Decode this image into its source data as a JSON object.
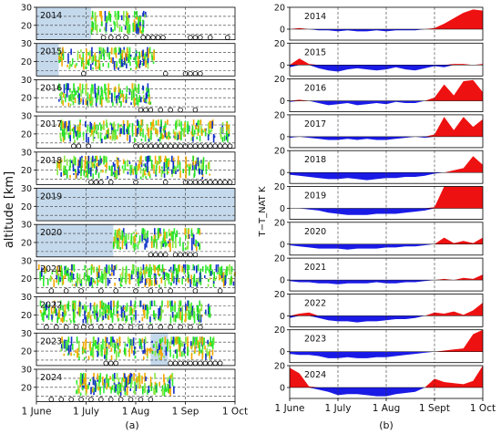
{
  "chart_data": [
    {
      "type": "scatter",
      "panel_label": "(a)",
      "ylabel": "altitude [km]",
      "xticks": [
        "1 June",
        "1 July",
        "1 Aug",
        "1 Sep",
        "1 Oct"
      ],
      "yticks": [
        20,
        30
      ],
      "ylim": [
        12,
        30
      ],
      "grid": "dashed",
      "years": [
        {
          "year": "2014",
          "shade": [
            0,
            1.1
          ],
          "data": [
            1.1,
            2.2
          ],
          "circles": [
            1.35,
            1.5,
            1.65,
            1.8,
            2.15,
            2.25,
            2.35,
            2.45,
            2.55,
            3.1,
            3.2,
            3.3,
            3.5,
            3.85
          ]
        },
        {
          "year": "2015",
          "shade": [
            0,
            0.45
          ],
          "data": [
            0.45,
            2.4
          ],
          "circles": [
            0.95,
            2.6,
            3.0,
            3.1,
            3.2,
            3.3
          ]
        },
        {
          "year": "2016",
          "shade": null,
          "data": [
            0.45,
            2.3
          ],
          "circles": [
            2.1,
            2.2,
            2.3,
            2.5,
            2.7,
            2.9,
            3.2
          ]
        },
        {
          "year": "2017",
          "shade": null,
          "data": [
            0.45,
            3.9
          ],
          "circles": [
            0.75,
            0.85,
            1.05,
            2.0,
            2.1,
            2.2,
            2.3,
            2.4,
            2.5,
            2.6,
            2.7,
            2.8,
            2.9,
            3.0,
            3.1,
            3.2,
            3.3,
            3.4,
            3.5,
            3.6,
            3.7,
            3.8,
            3.9
          ]
        },
        {
          "year": "2018",
          "shade": null,
          "data": [
            0.4,
            3.5
          ],
          "circles": [
            1.1,
            1.2,
            1.3,
            1.5,
            2.0,
            2.6,
            3.0,
            3.1,
            3.2,
            3.3,
            3.4,
            3.5,
            3.6,
            3.7,
            3.8,
            3.9
          ]
        },
        {
          "year": "2019",
          "shade": [
            0,
            4.0
          ],
          "data": null,
          "circles": []
        },
        {
          "year": "2020",
          "shade": [
            0,
            1.55
          ],
          "data": [
            1.55,
            3.3
          ],
          "circles": [
            2.3,
            2.4,
            2.5,
            2.6,
            2.8,
            2.9,
            3.0,
            3.1,
            3.2
          ]
        },
        {
          "year": "2021",
          "shade": null,
          "data": [
            0.05,
            4.0
          ],
          "circles": [
            0.3,
            0.6,
            0.9,
            1.3,
            1.6,
            2.0,
            2.3,
            2.5,
            2.7,
            3.2,
            3.7
          ]
        },
        {
          "year": "2022",
          "shade": null,
          "data": [
            0.05,
            3.5
          ],
          "circles": [
            0.2,
            0.4,
            0.6,
            0.8,
            0.95,
            1.1,
            1.3,
            1.5,
            1.7,
            1.9,
            2.1,
            2.3,
            2.5,
            2.7,
            2.9,
            3.1,
            3.3
          ]
        },
        {
          "year": "2023",
          "shade": [
            2.3,
            2.65
          ],
          "data": [
            0.5,
            3.6
          ],
          "circles": [
            1.4,
            1.5,
            1.6,
            2.7,
            2.8,
            2.9,
            3.0,
            3.1,
            3.2,
            3.3,
            3.4,
            3.5,
            3.6,
            3.7
          ]
        },
        {
          "year": "2024",
          "shade": null,
          "data": [
            0.8,
            2.8
          ],
          "circles": [
            0.3,
            0.5,
            0.7,
            0.9,
            1.1,
            1.3,
            1.5,
            1.7,
            1.9,
            2.1,
            2.3
          ]
        }
      ]
    },
    {
      "type": "area",
      "panel_label": "(b)",
      "ylabel": "T−T_NAT  K",
      "xticks": [
        "1 June",
        "1 July",
        "1 Aug",
        "1 Sept",
        "1 Oct"
      ],
      "yticks": [
        0,
        20
      ],
      "ylim": [
        -10,
        20
      ],
      "x": [
        0,
        0.2,
        0.4,
        0.6,
        0.8,
        1.0,
        1.2,
        1.4,
        1.6,
        1.8,
        2.0,
        2.2,
        2.4,
        2.6,
        2.8,
        3.0,
        3.2,
        3.4,
        3.6,
        3.8,
        4.0
      ],
      "years": [
        {
          "year": "2014",
          "values": [
            0,
            1,
            0,
            -1,
            -1,
            -2,
            -1,
            -2,
            -2,
            -1,
            -2,
            -1,
            -1,
            -1,
            0,
            1,
            5,
            10,
            15,
            18,
            17
          ]
        },
        {
          "year": "2015",
          "values": [
            -2,
            6,
            1,
            -3,
            -5,
            -6,
            -4,
            -3,
            -4,
            -5,
            -4,
            -2,
            -4,
            -5,
            -3,
            -1,
            -2,
            1,
            1,
            0,
            1
          ]
        },
        {
          "year": "2016",
          "values": [
            -1,
            1,
            0,
            -2,
            -4,
            -3,
            -2,
            -4,
            -3,
            -2,
            -3,
            -1,
            -2,
            -2,
            0,
            3,
            15,
            5,
            18,
            19,
            8
          ]
        },
        {
          "year": "2017",
          "values": [
            -1,
            0,
            -1,
            -2,
            -3,
            -3,
            -2,
            -3,
            -2,
            -3,
            -3,
            -2,
            -1,
            0,
            -1,
            2,
            18,
            6,
            18,
            9,
            16
          ]
        },
        {
          "year": "2018",
          "values": [
            -2,
            -3,
            -4,
            -5,
            -6,
            -6,
            -5,
            -6,
            -7,
            -6,
            -5,
            -5,
            -4,
            -4,
            -3,
            -1,
            0,
            2,
            4,
            15,
            7
          ]
        },
        {
          "year": "2019",
          "values": [
            0,
            0,
            -1,
            -2,
            -4,
            -5,
            -6,
            -6,
            -6,
            -5,
            -5,
            -5,
            -4,
            -3,
            -2,
            1,
            20,
            20,
            20,
            20,
            20
          ]
        },
        {
          "year": "2020",
          "values": [
            -1,
            -2,
            -3,
            -4,
            -4,
            -4,
            -5,
            -4,
            -4,
            -4,
            -3,
            -3,
            -2,
            -2,
            -1,
            0,
            6,
            1,
            3,
            1,
            6
          ]
        },
        {
          "year": "2021",
          "values": [
            -1,
            -2,
            -2,
            -3,
            -3,
            -4,
            -3,
            -3,
            -3,
            -2,
            -3,
            -3,
            -2,
            -2,
            -1,
            0,
            1,
            0,
            2,
            1,
            5
          ]
        },
        {
          "year": "2022",
          "values": [
            -2,
            2,
            3,
            -2,
            -4,
            -5,
            -5,
            -6,
            -5,
            -5,
            -4,
            -3,
            -3,
            -2,
            0,
            3,
            2,
            4,
            1,
            5,
            12
          ]
        },
        {
          "year": "2023",
          "values": [
            -2,
            -3,
            -3,
            -4,
            -6,
            -6,
            -5,
            -6,
            -6,
            -5,
            -5,
            -4,
            -3,
            -2,
            -1,
            0,
            1,
            2,
            3,
            16,
            20
          ]
        },
        {
          "year": "2024",
          "values": [
            18,
            13,
            1,
            -2,
            -4,
            -7,
            -6,
            -6,
            -7,
            -8,
            -8,
            -6,
            -5,
            -4,
            0,
            8,
            5,
            4,
            3,
            6,
            20
          ]
        }
      ]
    }
  ]
}
